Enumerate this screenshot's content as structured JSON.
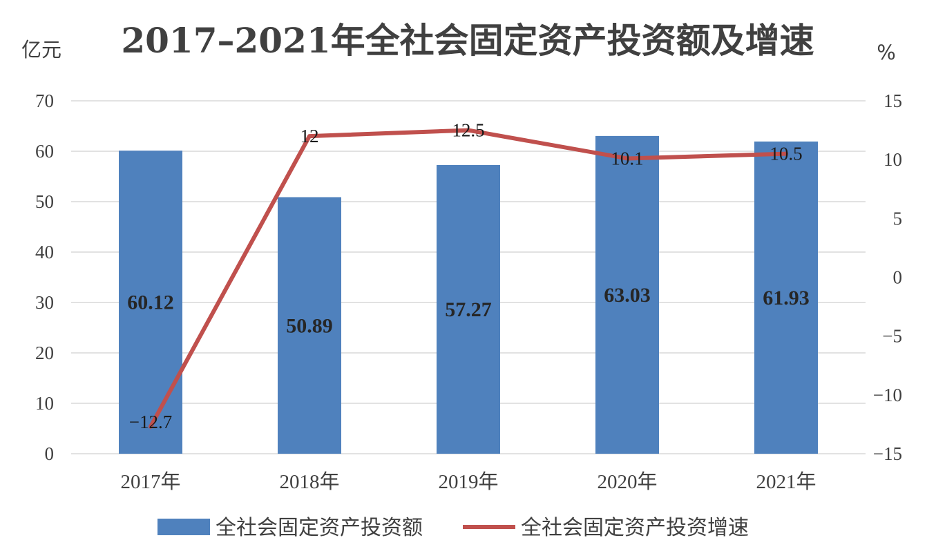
{
  "chart_data": {
    "type": "bar",
    "title": "2017–2021年全社会固定资产投资额及增速",
    "categories": [
      "2017年",
      "2018年",
      "2019年",
      "2020年",
      "2021年"
    ],
    "y_left": {
      "unit": "亿元",
      "ylim": [
        0,
        70
      ],
      "ticks": [
        0,
        10,
        20,
        30,
        40,
        50,
        60,
        70
      ]
    },
    "y_right": {
      "unit": "%",
      "ylim": [
        -15,
        15
      ],
      "ticks": [
        15,
        10,
        5,
        0,
        -5,
        -10,
        -15
      ],
      "tick_labels": [
        "15",
        "10",
        "5",
        "0",
        "−5",
        "−10",
        "−15"
      ]
    },
    "series": [
      {
        "name": "全社会固定资产投资额",
        "type": "bar",
        "axis": "left",
        "color": "#4f81bd",
        "values": [
          60.12,
          50.89,
          57.27,
          63.03,
          61.93
        ],
        "labels": [
          "60.12",
          "50.89",
          "57.27",
          "63.03",
          "61.93"
        ]
      },
      {
        "name": "全社会固定资产投资增速",
        "type": "line",
        "axis": "right",
        "color": "#c0504d",
        "values": [
          -12.7,
          12,
          12.5,
          10.1,
          10.5
        ],
        "labels": [
          "−12.7",
          "12",
          "12.5",
          "10.1",
          "10.5"
        ]
      }
    ],
    "grid": true,
    "legend": "bottom"
  }
}
